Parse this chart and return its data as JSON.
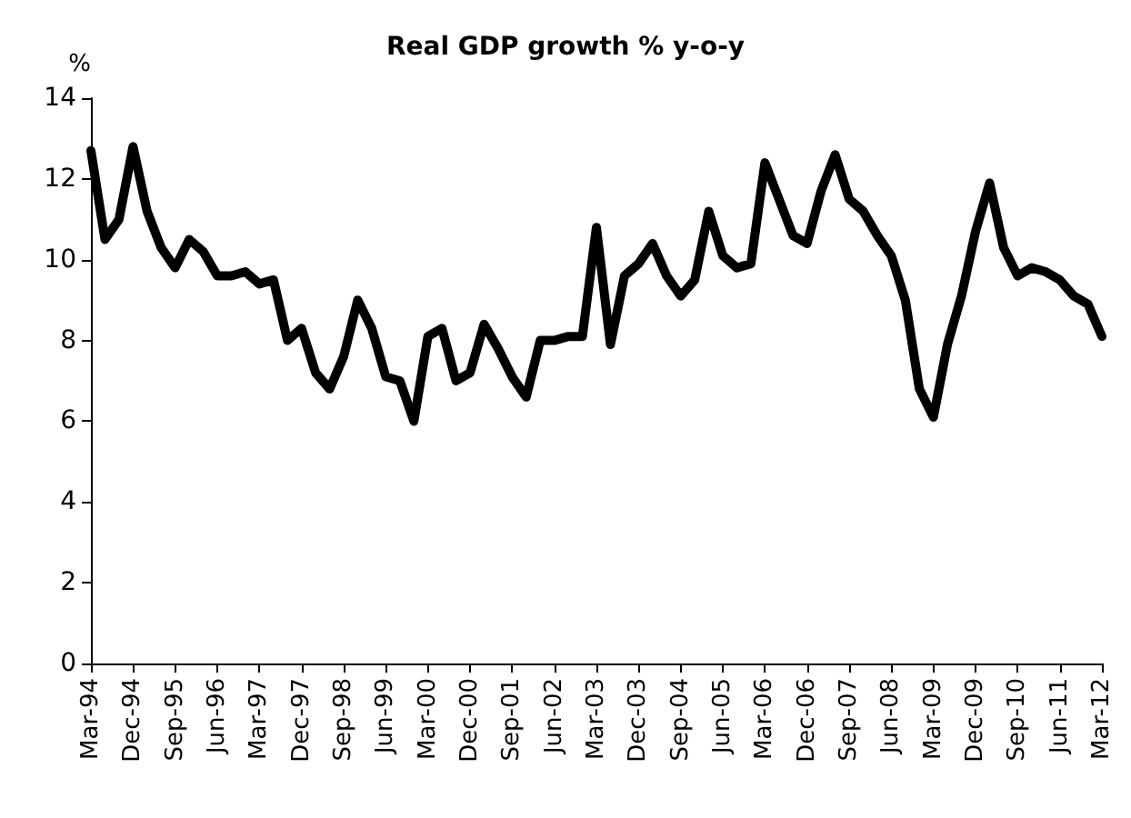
{
  "chart_data": {
    "type": "line",
    "title": "Real GDP growth % y-o-y",
    "ylabel": "%",
    "categories": [
      "Mar-94",
      null,
      null,
      "Dec-94",
      null,
      null,
      "Sep-95",
      null,
      null,
      "Jun-96",
      null,
      null,
      "Mar-97",
      null,
      null,
      "Dec-97",
      null,
      null,
      "Sep-98",
      null,
      null,
      "Jun-99",
      null,
      null,
      "Mar-00",
      null,
      null,
      "Dec-00",
      null,
      null,
      "Sep-01",
      null,
      null,
      "Jun-02",
      null,
      null,
      "Mar-03",
      null,
      null,
      "Dec-03",
      null,
      null,
      "Sep-04",
      null,
      null,
      "Jun-05",
      null,
      null,
      "Mar-06",
      null,
      null,
      "Dec-06",
      null,
      null,
      "Sep-07",
      null,
      null,
      "Jun-08",
      null,
      null,
      "Mar-09",
      null,
      null,
      "Dec-09",
      null,
      null,
      "Sep-10",
      null,
      null,
      "Jun-11",
      null,
      null,
      "Mar-12"
    ],
    "series": [
      {
        "color": "#000000",
        "values": [
          12.7,
          10.5,
          11.0,
          12.8,
          11.2,
          10.3,
          9.8,
          10.5,
          10.2,
          9.6,
          9.6,
          9.7,
          9.4,
          9.5,
          8.0,
          8.3,
          7.2,
          6.8,
          7.6,
          9.0,
          8.3,
          7.1,
          7.0,
          6.0,
          8.1,
          8.3,
          7.0,
          7.2,
          8.4,
          7.8,
          7.1,
          6.6,
          8.0,
          8.0,
          8.1,
          8.1,
          10.8,
          7.9,
          9.6,
          9.9,
          10.4,
          9.6,
          9.1,
          9.5,
          11.2,
          10.1,
          9.8,
          9.9,
          12.4,
          11.5,
          10.6,
          10.4,
          11.7,
          12.6,
          11.5,
          11.2,
          10.6,
          10.1,
          9.0,
          6.8,
          6.1,
          7.9,
          9.1,
          10.7,
          11.9,
          10.3,
          9.6,
          9.8,
          9.7,
          9.5,
          9.1,
          8.9,
          8.1
        ]
      }
    ],
    "ylim": [
      0,
      14
    ],
    "yticks": [
      0,
      2,
      4,
      6,
      8,
      10,
      12,
      14
    ],
    "grid": false,
    "marker": "none",
    "line_style": "solid"
  }
}
